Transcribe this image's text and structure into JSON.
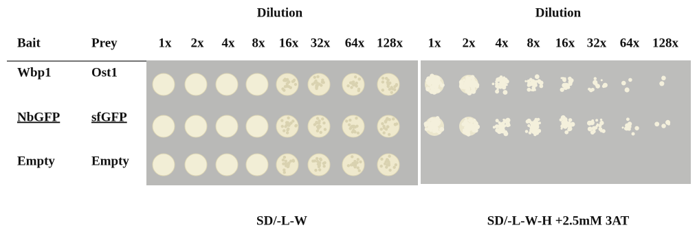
{
  "header": {
    "dilution_left": "Dilution",
    "dilution_right": "Dilution",
    "bait": "Bait",
    "prey": "Prey"
  },
  "dilutions_left": [
    "1x",
    "2x",
    "4x",
    "8x",
    "16x",
    "32x",
    "64x",
    "128x"
  ],
  "dilutions_right": [
    "1x",
    "2x",
    "4x",
    "8x",
    "16x",
    "32x",
    "64x",
    "128x"
  ],
  "rows": [
    {
      "bait": "Wbp1",
      "prey": "Ost1"
    },
    {
      "bait": "NbGFP",
      "prey": "sfGFP"
    },
    {
      "bait": "Empty",
      "prey": "Empty"
    }
  ],
  "plates": [
    {
      "label": "SD/-L-W"
    },
    {
      "label": "SD/-L-W-H +2.5mM 3AT"
    }
  ]
}
